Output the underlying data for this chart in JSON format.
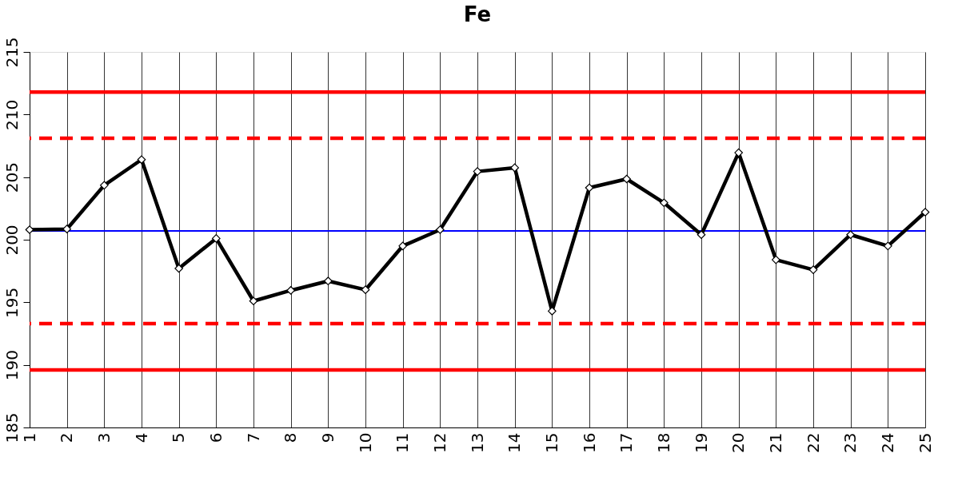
{
  "chart_data": {
    "type": "line",
    "title": "Fe",
    "x": [
      1,
      2,
      3,
      4,
      5,
      6,
      7,
      8,
      9,
      10,
      11,
      12,
      13,
      14,
      15,
      16,
      17,
      18,
      19,
      20,
      21,
      22,
      23,
      24,
      25
    ],
    "series": [
      {
        "color": "#000000",
        "values": [
          200.8,
          200.85,
          204.35,
          206.4,
          197.7,
          200.1,
          195.1,
          195.95,
          196.7,
          196.0,
          199.5,
          200.8,
          205.45,
          205.75,
          194.3,
          204.15,
          204.85,
          202.95,
          200.4,
          206.95,
          198.4,
          197.6,
          200.4,
          199.5,
          202.2
        ]
      }
    ],
    "xlim": [
      1,
      25
    ],
    "xticks": [
      1,
      2,
      3,
      4,
      5,
      6,
      7,
      8,
      9,
      10,
      11,
      12,
      13,
      14,
      15,
      16,
      17,
      18,
      19,
      20,
      21,
      22,
      23,
      24,
      25
    ],
    "ylim": [
      185,
      215
    ],
    "yticks": [
      185,
      190,
      195,
      200,
      205,
      210,
      215
    ],
    "grid": "x",
    "marker": "diamond",
    "line_style": "solid",
    "ref_lines": [
      {
        "axis": "y",
        "value": 211.8,
        "color": "#ff0000",
        "line_style": "solid"
      },
      {
        "axis": "y",
        "value": 208.1,
        "color": "#ff0000",
        "line_style": "dashed"
      },
      {
        "axis": "y",
        "value": 200.7,
        "color": "#0000ff",
        "line_style": "solid"
      },
      {
        "axis": "y",
        "value": 193.3,
        "color": "#ff0000",
        "line_style": "dashed"
      },
      {
        "axis": "y",
        "value": 189.6,
        "color": "#ff0000",
        "line_style": "solid"
      }
    ]
  }
}
